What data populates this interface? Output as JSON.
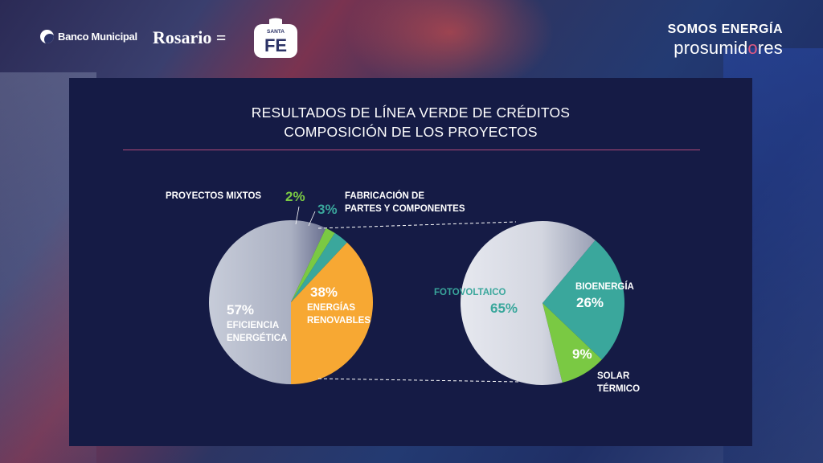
{
  "header": {
    "bank_logo": "Banco Municipal",
    "city_logo": "Rosario",
    "city_logo_suffix": "=",
    "province_logo_small": "SANTA",
    "province_logo_big": "FE",
    "brand_line1": "SOMOS ENERGÍA",
    "brand_line2_a": "prosumid",
    "brand_line2_b": "o",
    "brand_line2_c": "res"
  },
  "title": {
    "line1": "RESULTADOS DE LÍNEA VERDE DE CRÉDITOS",
    "line2": "COMPOSICIÓN DE LOS PROYECTOS"
  },
  "chart_data": [
    {
      "type": "pie",
      "slices": [
        {
          "label": "EFICIENCIA ENERGÉTICA",
          "value": 57,
          "pct_label": "57%",
          "color": "#b6bccd"
        },
        {
          "label": "PROYECTOS MIXTOS",
          "value": 2,
          "pct_label": "2%",
          "color": "#7ac943"
        },
        {
          "label": "FABRICACIÓN DE PARTES Y COMPONENTES",
          "value": 3,
          "pct_label": "3%",
          "color": "#3aa79c"
        },
        {
          "label": "ENERGÍAS RENOVABLES",
          "value": 38,
          "pct_label": "38%",
          "color": "#f7a833"
        }
      ],
      "labels": {
        "mixtos": "PROYECTOS MIXTOS",
        "fabricacion_1": "FABRICACIÓN DE",
        "fabricacion_2": "PARTES Y COMPONENTES",
        "renovables_1": "ENERGÍAS",
        "renovables_2": "RENOVABLES",
        "eficiencia_1": "EFICIENCIA",
        "eficiencia_2": "ENERGÉTICA"
      }
    },
    {
      "type": "pie",
      "slices": [
        {
          "label": "FOTOVOLTAICO",
          "value": 65,
          "pct_label": "65%",
          "color": "#dcdfe8"
        },
        {
          "label": "BIOENERGÍA",
          "value": 26,
          "pct_label": "26%",
          "color": "#3aa79c"
        },
        {
          "label": "SOLAR TÉRMICO",
          "value": 9,
          "pct_label": "9%",
          "color": "#7ac943"
        }
      ],
      "labels": {
        "foto": "FOTOVOLTAICO",
        "bio": "BIOENERGÍA",
        "solar_1": "SOLAR",
        "solar_2": "TÉRMICO"
      }
    }
  ],
  "colors": {
    "panel": "#151b45",
    "teal": "#3aa79c",
    "green": "#7ac943",
    "orange": "#f7a833",
    "divider": "#b24a78"
  }
}
